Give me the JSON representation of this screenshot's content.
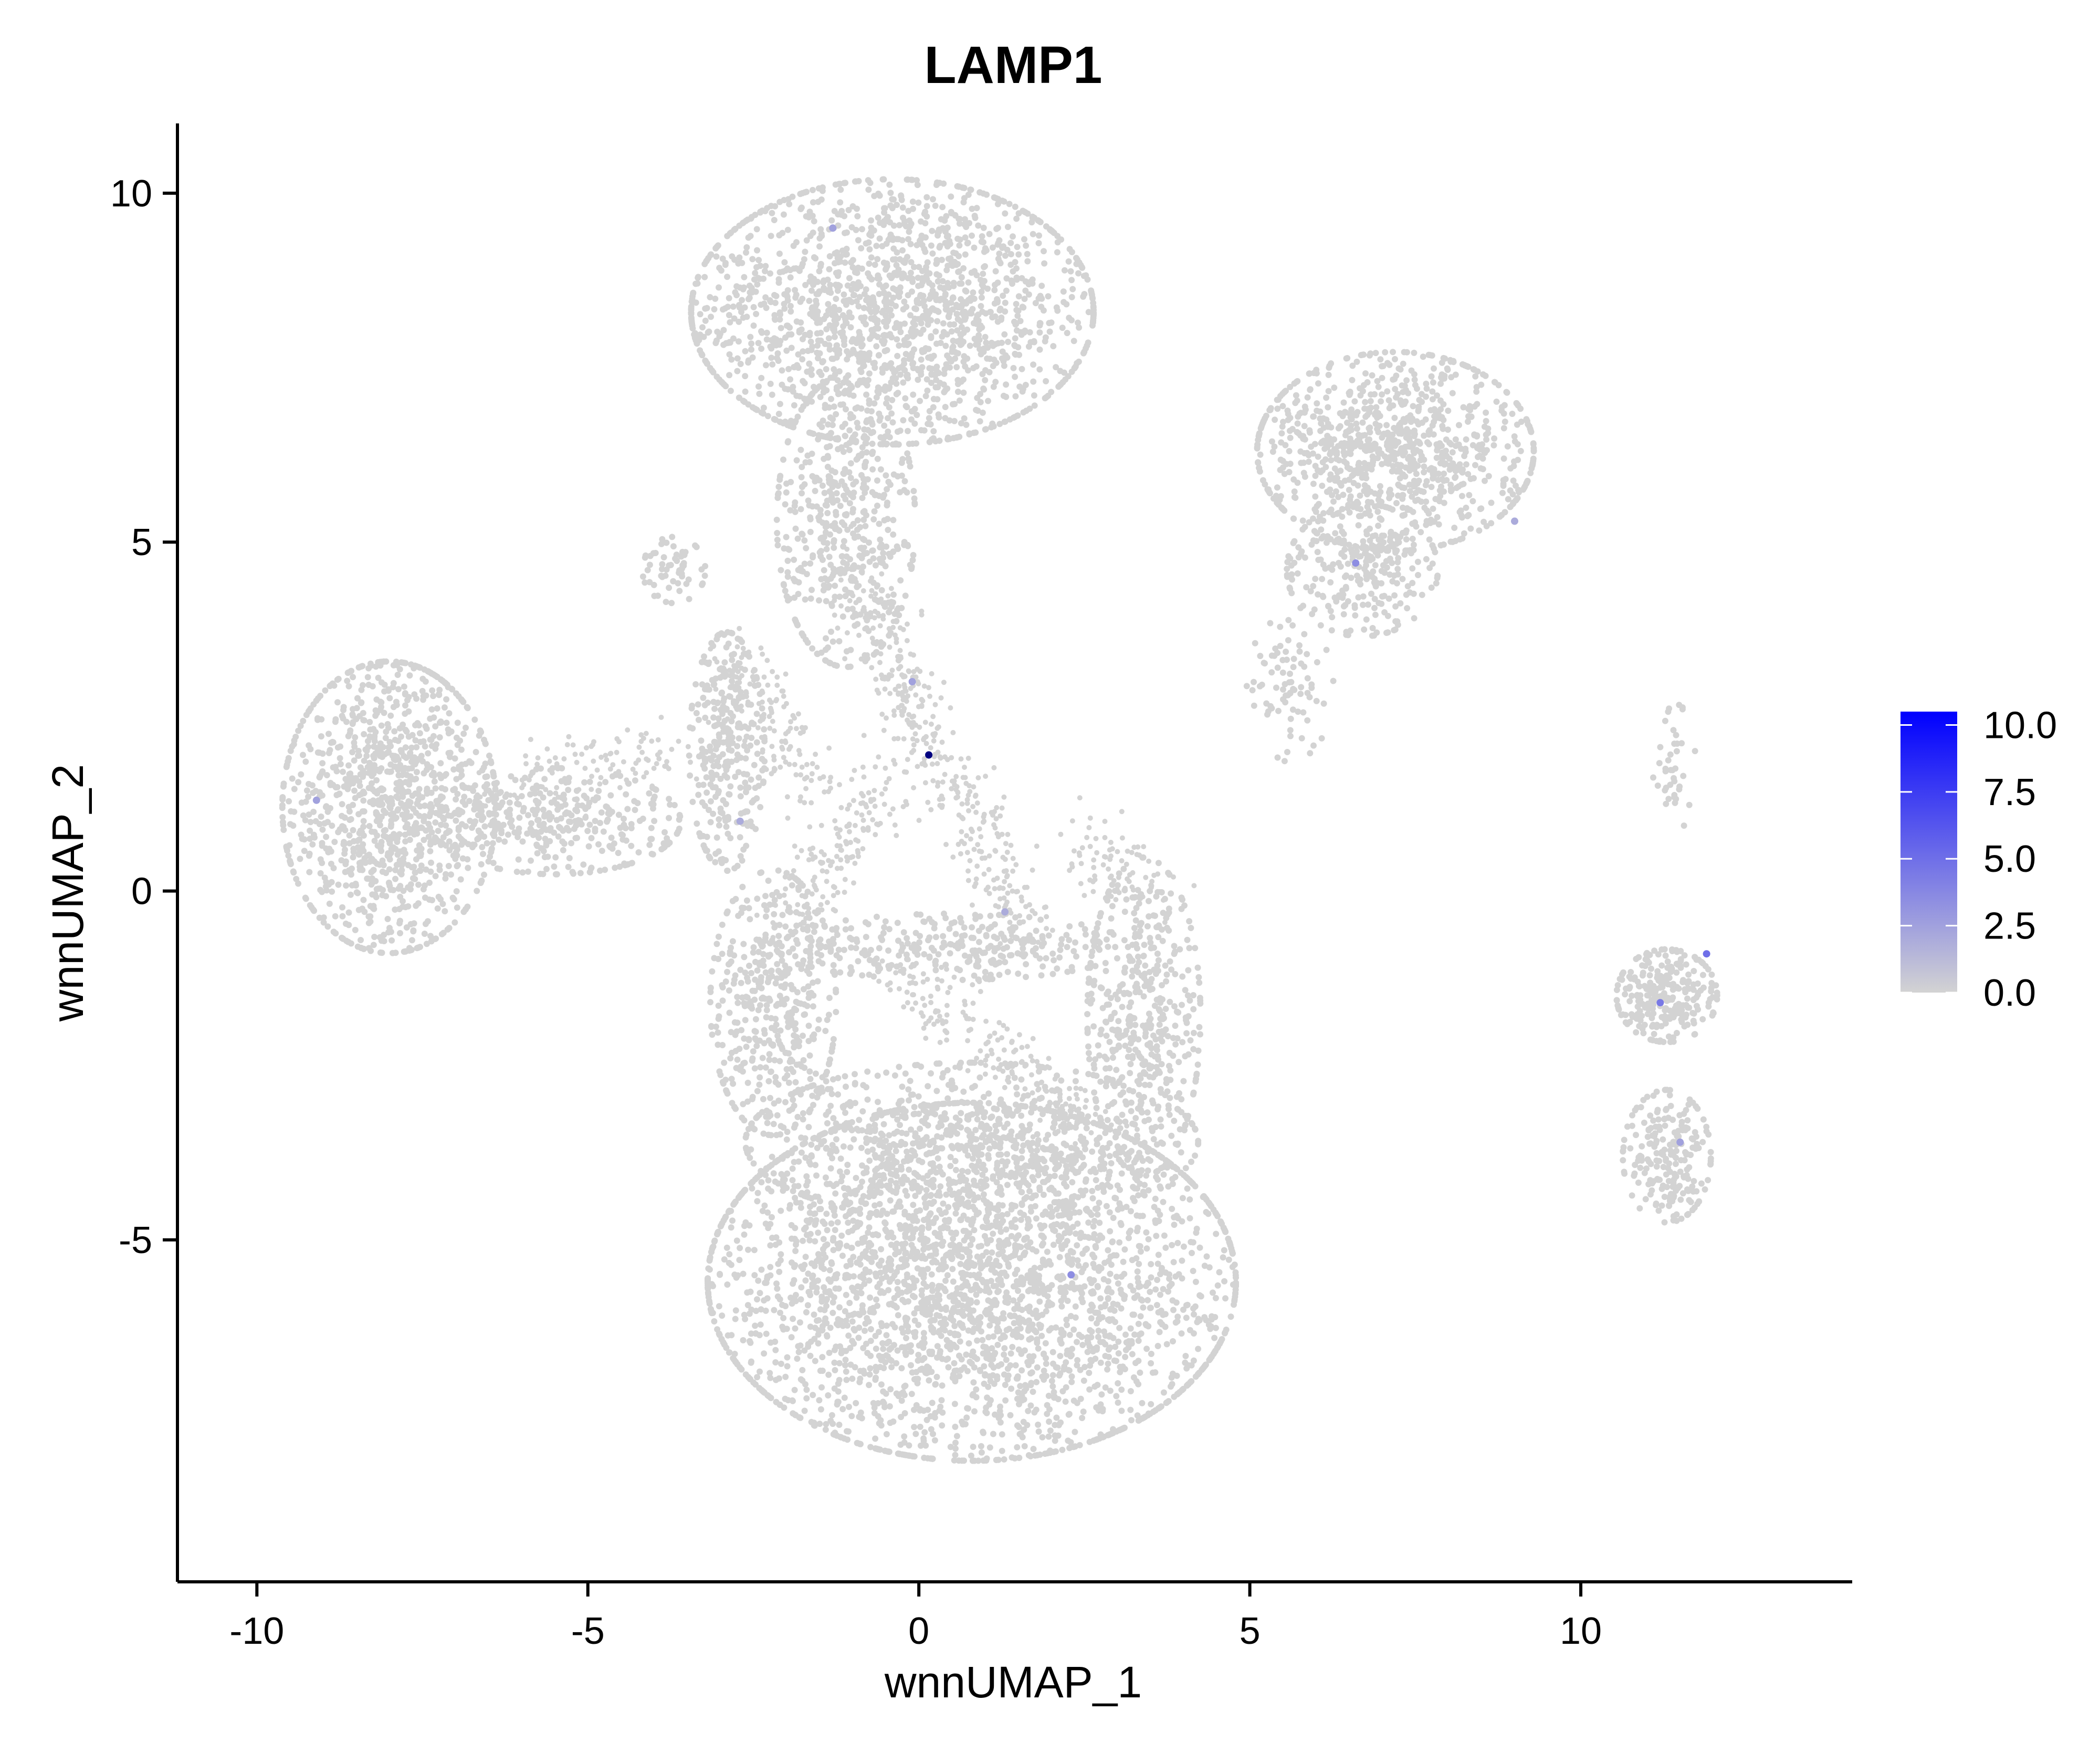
{
  "chart_data": {
    "type": "scatter",
    "title": "LAMP1",
    "xlabel": "wnnUMAP_1",
    "ylabel": "wnnUMAP_2",
    "xlim": [
      -11.2,
      14.1
    ],
    "ylim": [
      -9.9,
      11.0
    ],
    "xticks": [
      {
        "value": -10,
        "label": "-10"
      },
      {
        "value": -5,
        "label": "-5"
      },
      {
        "value": 0,
        "label": "0"
      },
      {
        "value": 5,
        "label": "5"
      },
      {
        "value": 10,
        "label": "10"
      }
    ],
    "yticks": [
      {
        "value": -5,
        "label": "-5"
      },
      {
        "value": 0,
        "label": "0"
      },
      {
        "value": 5,
        "label": "5"
      },
      {
        "value": 10,
        "label": "10"
      }
    ],
    "grid": false,
    "colors": {
      "low": "#d3d3d3",
      "high": "#0000ff"
    },
    "colorbar": {
      "range": [
        0,
        10.5
      ],
      "ticks": [
        {
          "value": 0,
          "label": "0.0"
        },
        {
          "value": 2.5,
          "label": "2.5"
        },
        {
          "value": 5,
          "label": "5.0"
        },
        {
          "value": 7.5,
          "label": "7.5"
        },
        {
          "value": 10,
          "label": "10.0"
        }
      ],
      "placement": "right"
    },
    "clusters": [
      {
        "id": "cluster-top",
        "cx": -0.4,
        "cy": 8.3,
        "sx": 1.6,
        "sy": 1.0,
        "n": 1700
      },
      {
        "id": "cluster-top-stem",
        "cx": -1.1,
        "cy": 5.3,
        "sx": 0.55,
        "sy": 1.1,
        "n": 500
      },
      {
        "id": "cluster-left",
        "cx": -8.0,
        "cy": 1.2,
        "sx": 0.85,
        "sy": 1.1,
        "n": 1100
      },
      {
        "id": "cluster-left-tail",
        "cx": -5.5,
        "cy": 1.0,
        "sx": 1.0,
        "sy": 0.4,
        "n": 350
      },
      {
        "id": "cluster-small-left",
        "cx": -3.7,
        "cy": 4.6,
        "sx": 0.25,
        "sy": 0.25,
        "n": 60
      },
      {
        "id": "cluster-mid-left",
        "cx": -2.9,
        "cy": 2.0,
        "sx": 0.3,
        "sy": 0.9,
        "n": 300
      },
      {
        "id": "cluster-mid-band",
        "cx": 0.5,
        "cy": -0.8,
        "sx": 1.4,
        "sy": 0.25,
        "n": 300
      },
      {
        "id": "cluster-mid-left-column",
        "cx": -2.2,
        "cy": -1.6,
        "sx": 0.5,
        "sy": 1.0,
        "n": 450
      },
      {
        "id": "cluster-mid-right",
        "cx": 3.4,
        "cy": -1.8,
        "sx": 0.45,
        "sy": 1.2,
        "n": 450
      },
      {
        "id": "cluster-bottom",
        "cx": 0.8,
        "cy": -5.6,
        "sx": 2.1,
        "sy": 1.35,
        "n": 3000
      },
      {
        "id": "cluster-bottom-upper",
        "cx": 0.8,
        "cy": -3.6,
        "sx": 1.8,
        "sy": 0.6,
        "n": 700
      },
      {
        "id": "cluster-right-top",
        "cx": 7.2,
        "cy": 6.3,
        "sx": 1.1,
        "sy": 0.75,
        "n": 1000
      },
      {
        "id": "cluster-right-top-lower",
        "cx": 6.7,
        "cy": 4.6,
        "sx": 0.6,
        "sy": 0.5,
        "n": 250
      },
      {
        "id": "cluster-right-top-tail",
        "cx": 5.6,
        "cy": 2.9,
        "sx": 0.35,
        "sy": 0.55,
        "n": 80
      },
      {
        "id": "cluster-far-right-upper",
        "cx": 11.3,
        "cy": -1.5,
        "sx": 0.4,
        "sy": 0.35,
        "n": 280
      },
      {
        "id": "cluster-far-right-lower",
        "cx": 11.3,
        "cy": -3.8,
        "sx": 0.35,
        "sy": 0.5,
        "n": 220
      },
      {
        "id": "cluster-far-right-specks",
        "cx": 11.4,
        "cy": 1.8,
        "sx": 0.2,
        "sy": 0.5,
        "n": 40
      }
    ],
    "bridges": [
      {
        "from": [
          -1.0,
          4.5
        ],
        "to": [
          0.2,
          2.0
        ],
        "n": 200
      },
      {
        "from": [
          0.2,
          2.0
        ],
        "to": [
          1.6,
          -0.5
        ],
        "n": 180
      },
      {
        "from": [
          -0.5,
          1.5
        ],
        "to": [
          -2.0,
          -0.5
        ],
        "n": 150
      },
      {
        "from": [
          -3.0,
          3.5
        ],
        "to": [
          -1.5,
          1.5
        ],
        "n": 150
      },
      {
        "from": [
          -0.5,
          -1.0
        ],
        "to": [
          2.8,
          -3.5
        ],
        "n": 200
      },
      {
        "from": [
          -6.5,
          1.5
        ],
        "to": [
          -3.5,
          2.0
        ],
        "n": 120
      },
      {
        "from": [
          2.4,
          0.8
        ],
        "to": [
          3.6,
          0.0
        ],
        "n": 80
      }
    ],
    "expressing_cells": [
      {
        "x": 0.15,
        "y": 1.95,
        "value": 10.0
      },
      {
        "x": 11.2,
        "y": -1.6,
        "value": 4.5
      },
      {
        "x": 11.9,
        "y": -0.9,
        "value": 5.0
      },
      {
        "x": 2.3,
        "y": -5.5,
        "value": 3.5
      },
      {
        "x": 6.6,
        "y": 4.7,
        "value": 3.5
      },
      {
        "x": -1.3,
        "y": 9.5,
        "value": 2.5
      },
      {
        "x": -0.1,
        "y": 3.0,
        "value": 2.5
      },
      {
        "x": -9.1,
        "y": 1.3,
        "value": 2.5
      },
      {
        "x": 11.5,
        "y": -3.6,
        "value": 2.5
      },
      {
        "x": -2.7,
        "y": 1.0,
        "value": 2.0
      },
      {
        "x": 1.3,
        "y": -0.3,
        "value": 2.0
      },
      {
        "x": 9.0,
        "y": 5.3,
        "value": 2.0
      }
    ]
  }
}
